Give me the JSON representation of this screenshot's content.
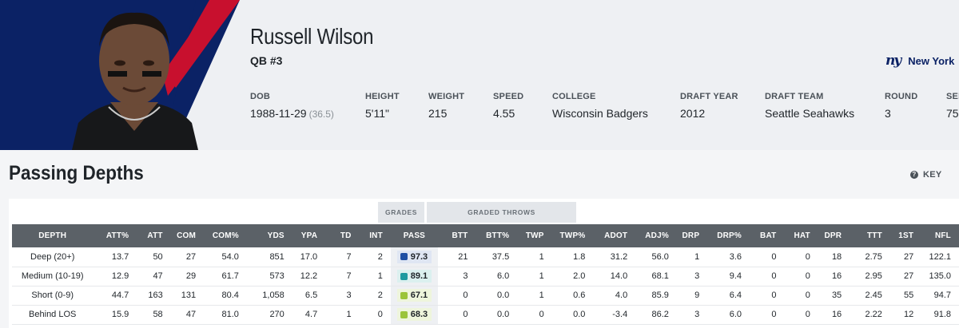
{
  "player": {
    "name": "Russell Wilson",
    "position": "QB #3",
    "team_name": "New York",
    "team_logo_text": "ny",
    "team_color": "#0b2265",
    "banner_colors": {
      "navy": "#0b2265",
      "red": "#c8102e"
    }
  },
  "bio": [
    {
      "label": "DOB",
      "value": "1988-11-29",
      "sub": "(36.5)"
    },
    {
      "label": "HEIGHT",
      "value": "5'11\"",
      "sub": ""
    },
    {
      "label": "WEIGHT",
      "value": "215",
      "sub": ""
    },
    {
      "label": "SPEED",
      "value": "4.55",
      "sub": ""
    },
    {
      "label": "COLLEGE",
      "value": "Wisconsin Badgers",
      "sub": ""
    },
    {
      "label": "DRAFT YEAR",
      "value": "2012",
      "sub": ""
    },
    {
      "label": "DRAFT TEAM",
      "value": "Seattle Seahawks",
      "sub": ""
    },
    {
      "label": "ROUND",
      "value": "3",
      "sub": ""
    },
    {
      "label": "SEL",
      "value": "75",
      "sub": ""
    }
  ],
  "section": {
    "title": "Passing Depths",
    "key_label": "KEY"
  },
  "groups": {
    "grades": "GRADES",
    "graded_throws": "GRADED THROWS"
  },
  "columns": [
    "DEPTH",
    "ATT%",
    "ATT",
    "COM",
    "COM%",
    "YDS",
    "YPA",
    "TD",
    "INT",
    "PASS",
    "BTT",
    "BTT%",
    "TWP",
    "TWP%",
    "ADOT",
    "ADJ%",
    "DRP",
    "DRP%",
    "BAT",
    "HAT",
    "DPR",
    "TTT",
    "1ST",
    "NFL"
  ],
  "rows": [
    {
      "depth": "Deep (20+)",
      "cells": [
        "13.7",
        "50",
        "27",
        "54.0",
        "851",
        "17.0",
        "7",
        "2"
      ],
      "pass": "97.3",
      "pass_color": "#1f4fa3",
      "pass_bg": "#dfe6f3",
      "rest": [
        "21",
        "37.5",
        "1",
        "1.8",
        "31.2",
        "56.0",
        "1",
        "3.6",
        "0",
        "0",
        "18",
        "2.75",
        "27",
        "122.1"
      ]
    },
    {
      "depth": "Medium (10-19)",
      "cells": [
        "12.9",
        "47",
        "29",
        "61.7",
        "573",
        "12.2",
        "7",
        "1"
      ],
      "pass": "89.1",
      "pass_color": "#1d9aa0",
      "pass_bg": "#dbf0ef",
      "rest": [
        "3",
        "6.0",
        "1",
        "2.0",
        "14.0",
        "68.1",
        "3",
        "9.4",
        "0",
        "0",
        "16",
        "2.95",
        "27",
        "135.0"
      ]
    },
    {
      "depth": "Short (0-9)",
      "cells": [
        "44.7",
        "163",
        "131",
        "80.4",
        "1,058",
        "6.5",
        "3",
        "2"
      ],
      "pass": "67.1",
      "pass_color": "#9bc43a",
      "pass_bg": "#eef5dc",
      "rest": [
        "0",
        "0.0",
        "1",
        "0.6",
        "4.0",
        "85.9",
        "9",
        "6.4",
        "0",
        "0",
        "35",
        "2.45",
        "55",
        "94.7"
      ]
    },
    {
      "depth": "Behind LOS",
      "cells": [
        "15.9",
        "58",
        "47",
        "81.0",
        "270",
        "4.7",
        "1",
        "0"
      ],
      "pass": "68.3",
      "pass_color": "#9bc43a",
      "pass_bg": "#eef5dc",
      "rest": [
        "0",
        "0.0",
        "0",
        "0.0",
        "-3.4",
        "86.2",
        "3",
        "6.0",
        "0",
        "0",
        "16",
        "2.22",
        "12",
        "91.8"
      ]
    }
  ]
}
